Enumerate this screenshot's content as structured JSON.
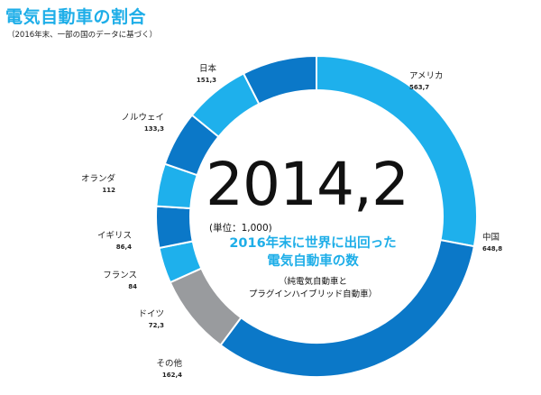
{
  "title": "電気自動車の割合",
  "subtitle": "（2016年末、一部の国のデータに基づく）",
  "center": {
    "total": "2014,2",
    "unit": "(単位：1,000)",
    "headline_line1": "2016年末に世界に出回った",
    "headline_line2": "電気自動車の数",
    "note_line1": "（純電気自動車と",
    "note_line2": "プラグインハイブリッド自動車）"
  },
  "colors": {
    "cyan": "#1eb0ec",
    "blue": "#0b78c8",
    "gray": "#999b9e",
    "title": "#1eaee8"
  },
  "chart_data": {
    "type": "pie",
    "donut": true,
    "title": "電気自動車の割合",
    "total": "2014,2",
    "slices": [
      {
        "name": "アメリカ",
        "label": "563,7",
        "value": 563.7,
        "color": "cyan"
      },
      {
        "name": "中国",
        "label": "648,8",
        "value": 648.8,
        "color": "blue"
      },
      {
        "name": "その他",
        "label": "162,4",
        "value": 162.4,
        "color": "gray"
      },
      {
        "name": "ドイツ",
        "label": "72,3",
        "value": 72.3,
        "color": "cyan"
      },
      {
        "name": "フランス",
        "label": "84",
        "value": 84,
        "color": "blue"
      },
      {
        "name": "イギリス",
        "label": "86,4",
        "value": 86.4,
        "color": "cyan"
      },
      {
        "name": "オランダ",
        "label": "112",
        "value": 112,
        "color": "blue"
      },
      {
        "name": "ノルウェイ",
        "label": "133,3",
        "value": 133.3,
        "color": "cyan"
      },
      {
        "name": "日本",
        "label": "151,3",
        "value": 151.3,
        "color": "blue"
      }
    ]
  }
}
